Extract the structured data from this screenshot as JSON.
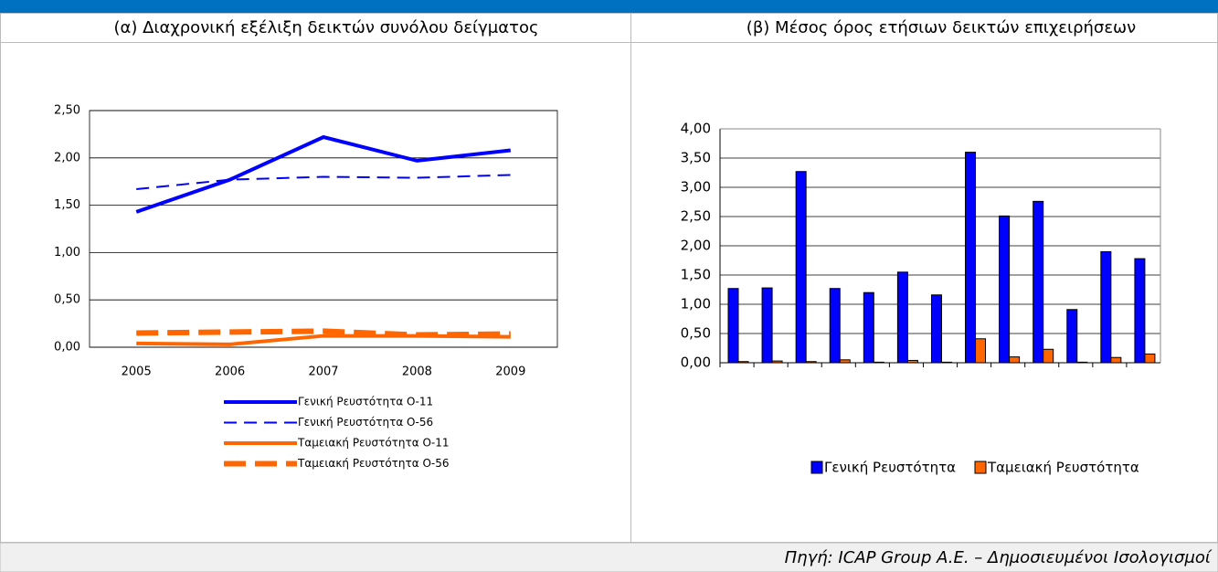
{
  "chart_data": [
    {
      "type": "line",
      "title": "(α) Διαχρονική εξέλιξη δεικτών συνόλου δείγματος",
      "categories": [
        "2005",
        "2006",
        "2007",
        "2008",
        "2009"
      ],
      "ylim": [
        0,
        2.5
      ],
      "yticks": [
        {
          "value": 0,
          "label": "0,00"
        },
        {
          "value": 0.5,
          "label": "0,50"
        },
        {
          "value": 1,
          "label": "1,00"
        },
        {
          "value": 1.5,
          "label": "1,50"
        },
        {
          "value": 2,
          "label": "2,00"
        },
        {
          "value": 2.5,
          "label": "2,50"
        }
      ],
      "grid": true,
      "legend": "bottom",
      "series": [
        {
          "name": "Γενική Ρευστότητα Ο-11",
          "color": "#0000ff",
          "dash": false,
          "values": [
            1.43,
            1.77,
            2.22,
            1.97,
            2.08
          ]
        },
        {
          "name": "Γενική Ρευστότητα Ο-56",
          "color": "#0000ff",
          "dash": true,
          "values": [
            1.67,
            1.77,
            1.8,
            1.79,
            1.82
          ]
        },
        {
          "name": "Ταμειακή Ρευστότητα Ο-11",
          "color": "#ff6600",
          "dash": false,
          "values": [
            0.04,
            0.03,
            0.12,
            0.12,
            0.11
          ]
        },
        {
          "name": "Ταμειακή Ρευστότητα Ο-56",
          "color": "#ff6600",
          "dash": true,
          "values": [
            0.15,
            0.16,
            0.17,
            0.13,
            0.14
          ]
        }
      ]
    },
    {
      "type": "bar",
      "title": "(β) Μέσος όρος ετήσιων δεικτών επιχειρήσεων",
      "categories": [
        null,
        null,
        null,
        null,
        null,
        null,
        null,
        null,
        null,
        null,
        null,
        null,
        null
      ],
      "ylim": [
        0,
        4
      ],
      "yticks": [
        {
          "value": 0,
          "label": "0,00"
        },
        {
          "value": 0.5,
          "label": "0,50"
        },
        {
          "value": 1,
          "label": "1,00"
        },
        {
          "value": 1.5,
          "label": "1,50"
        },
        {
          "value": 2,
          "label": "2,00"
        },
        {
          "value": 2.5,
          "label": "2,50"
        },
        {
          "value": 3,
          "label": "3,00"
        },
        {
          "value": 3.5,
          "label": "3,50"
        },
        {
          "value": 4,
          "label": "4,00"
        }
      ],
      "grid": true,
      "legend": "bottom",
      "series": [
        {
          "name": "Γενική Ρευστότητα",
          "color": "#0000ff",
          "values": [
            1.27,
            1.28,
            3.27,
            1.27,
            1.2,
            1.55,
            1.16,
            3.6,
            2.51,
            2.76,
            0.91,
            1.9,
            1.78
          ]
        },
        {
          "name": "Ταμειακή Ρευστότητα",
          "color": "#ff6600",
          "values": [
            0.02,
            0.03,
            0.02,
            0.05,
            0.01,
            0.04,
            0.01,
            0.41,
            0.1,
            0.23,
            0.01,
            0.09,
            0.15
          ]
        }
      ]
    }
  ],
  "footer": {
    "source": "Πηγή: ICAP Group A.E. – Δημοσιευμένοι Ισολογισμοί"
  }
}
